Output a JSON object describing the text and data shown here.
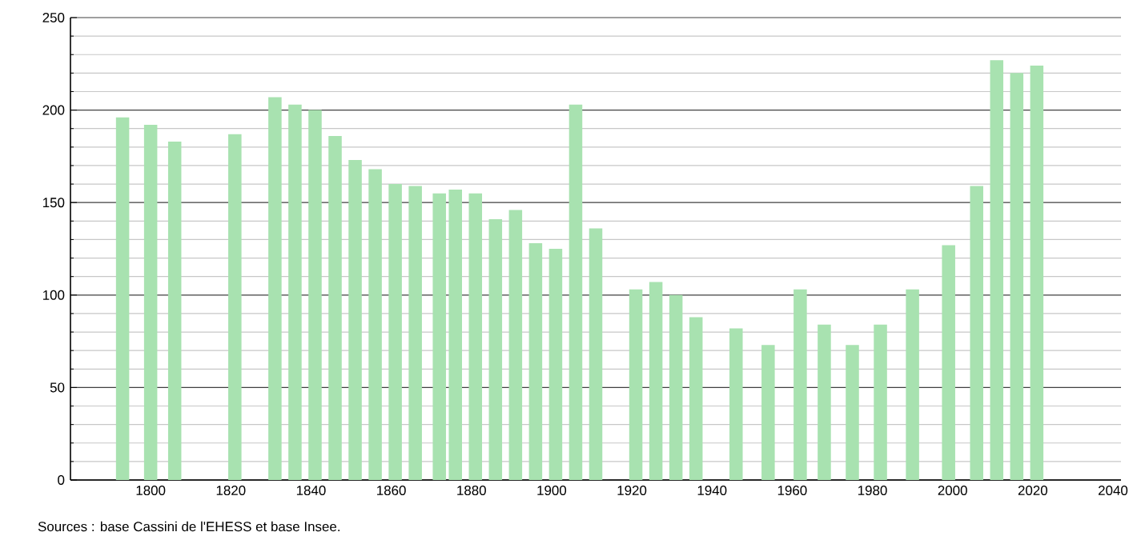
{
  "chart_data": {
    "type": "bar",
    "x": [
      1793,
      1800,
      1806,
      1821,
      1831,
      1836,
      1841,
      1846,
      1851,
      1856,
      1861,
      1866,
      1872,
      1876,
      1881,
      1886,
      1891,
      1896,
      1901,
      1906,
      1911,
      1921,
      1926,
      1931,
      1936,
      1946,
      1954,
      1962,
      1968,
      1975,
      1982,
      1990,
      1999,
      2006,
      2011,
      2016,
      2021
    ],
    "values": [
      196,
      192,
      183,
      187,
      207,
      203,
      200,
      186,
      173,
      168,
      160,
      159,
      155,
      157,
      155,
      141,
      146,
      128,
      125,
      203,
      136,
      103,
      107,
      100,
      88,
      82,
      73,
      103,
      84,
      73,
      84,
      103,
      127,
      159,
      227,
      220,
      224
    ],
    "color": "#a8e2b0",
    "xlim": [
      1780,
      2042
    ],
    "xticks": [
      1800,
      1820,
      1840,
      1860,
      1880,
      1900,
      1920,
      1940,
      1960,
      1980,
      2000,
      2020,
      2040
    ],
    "ylim": [
      0,
      250
    ],
    "yticks": [
      0,
      {
        "value": 10,
        "label": null
      },
      {
        "value": 20,
        "label": null
      },
      {
        "value": 30,
        "label": null
      },
      {
        "value": 40,
        "label": null
      },
      50,
      {
        "value": 60,
        "label": null
      },
      {
        "value": 70,
        "label": null
      },
      {
        "value": 80,
        "label": null
      },
      {
        "value": 90,
        "label": null
      },
      100,
      {
        "value": 110,
        "label": null
      },
      {
        "value": 120,
        "label": null
      },
      {
        "value": 130,
        "label": null
      },
      {
        "value": 140,
        "label": null
      },
      150,
      {
        "value": 160,
        "label": null
      },
      {
        "value": 170,
        "label": null
      },
      {
        "value": 180,
        "label": null
      },
      {
        "value": 190,
        "label": null
      },
      200,
      {
        "value": 210,
        "label": null
      },
      {
        "value": 220,
        "label": null
      },
      {
        "value": 230,
        "label": null
      },
      {
        "value": 240,
        "label": null
      },
      250
    ],
    "grid": "y",
    "annotations": [
      "Sources : base Cassini de l'EHESS et base Insee."
    ]
  }
}
